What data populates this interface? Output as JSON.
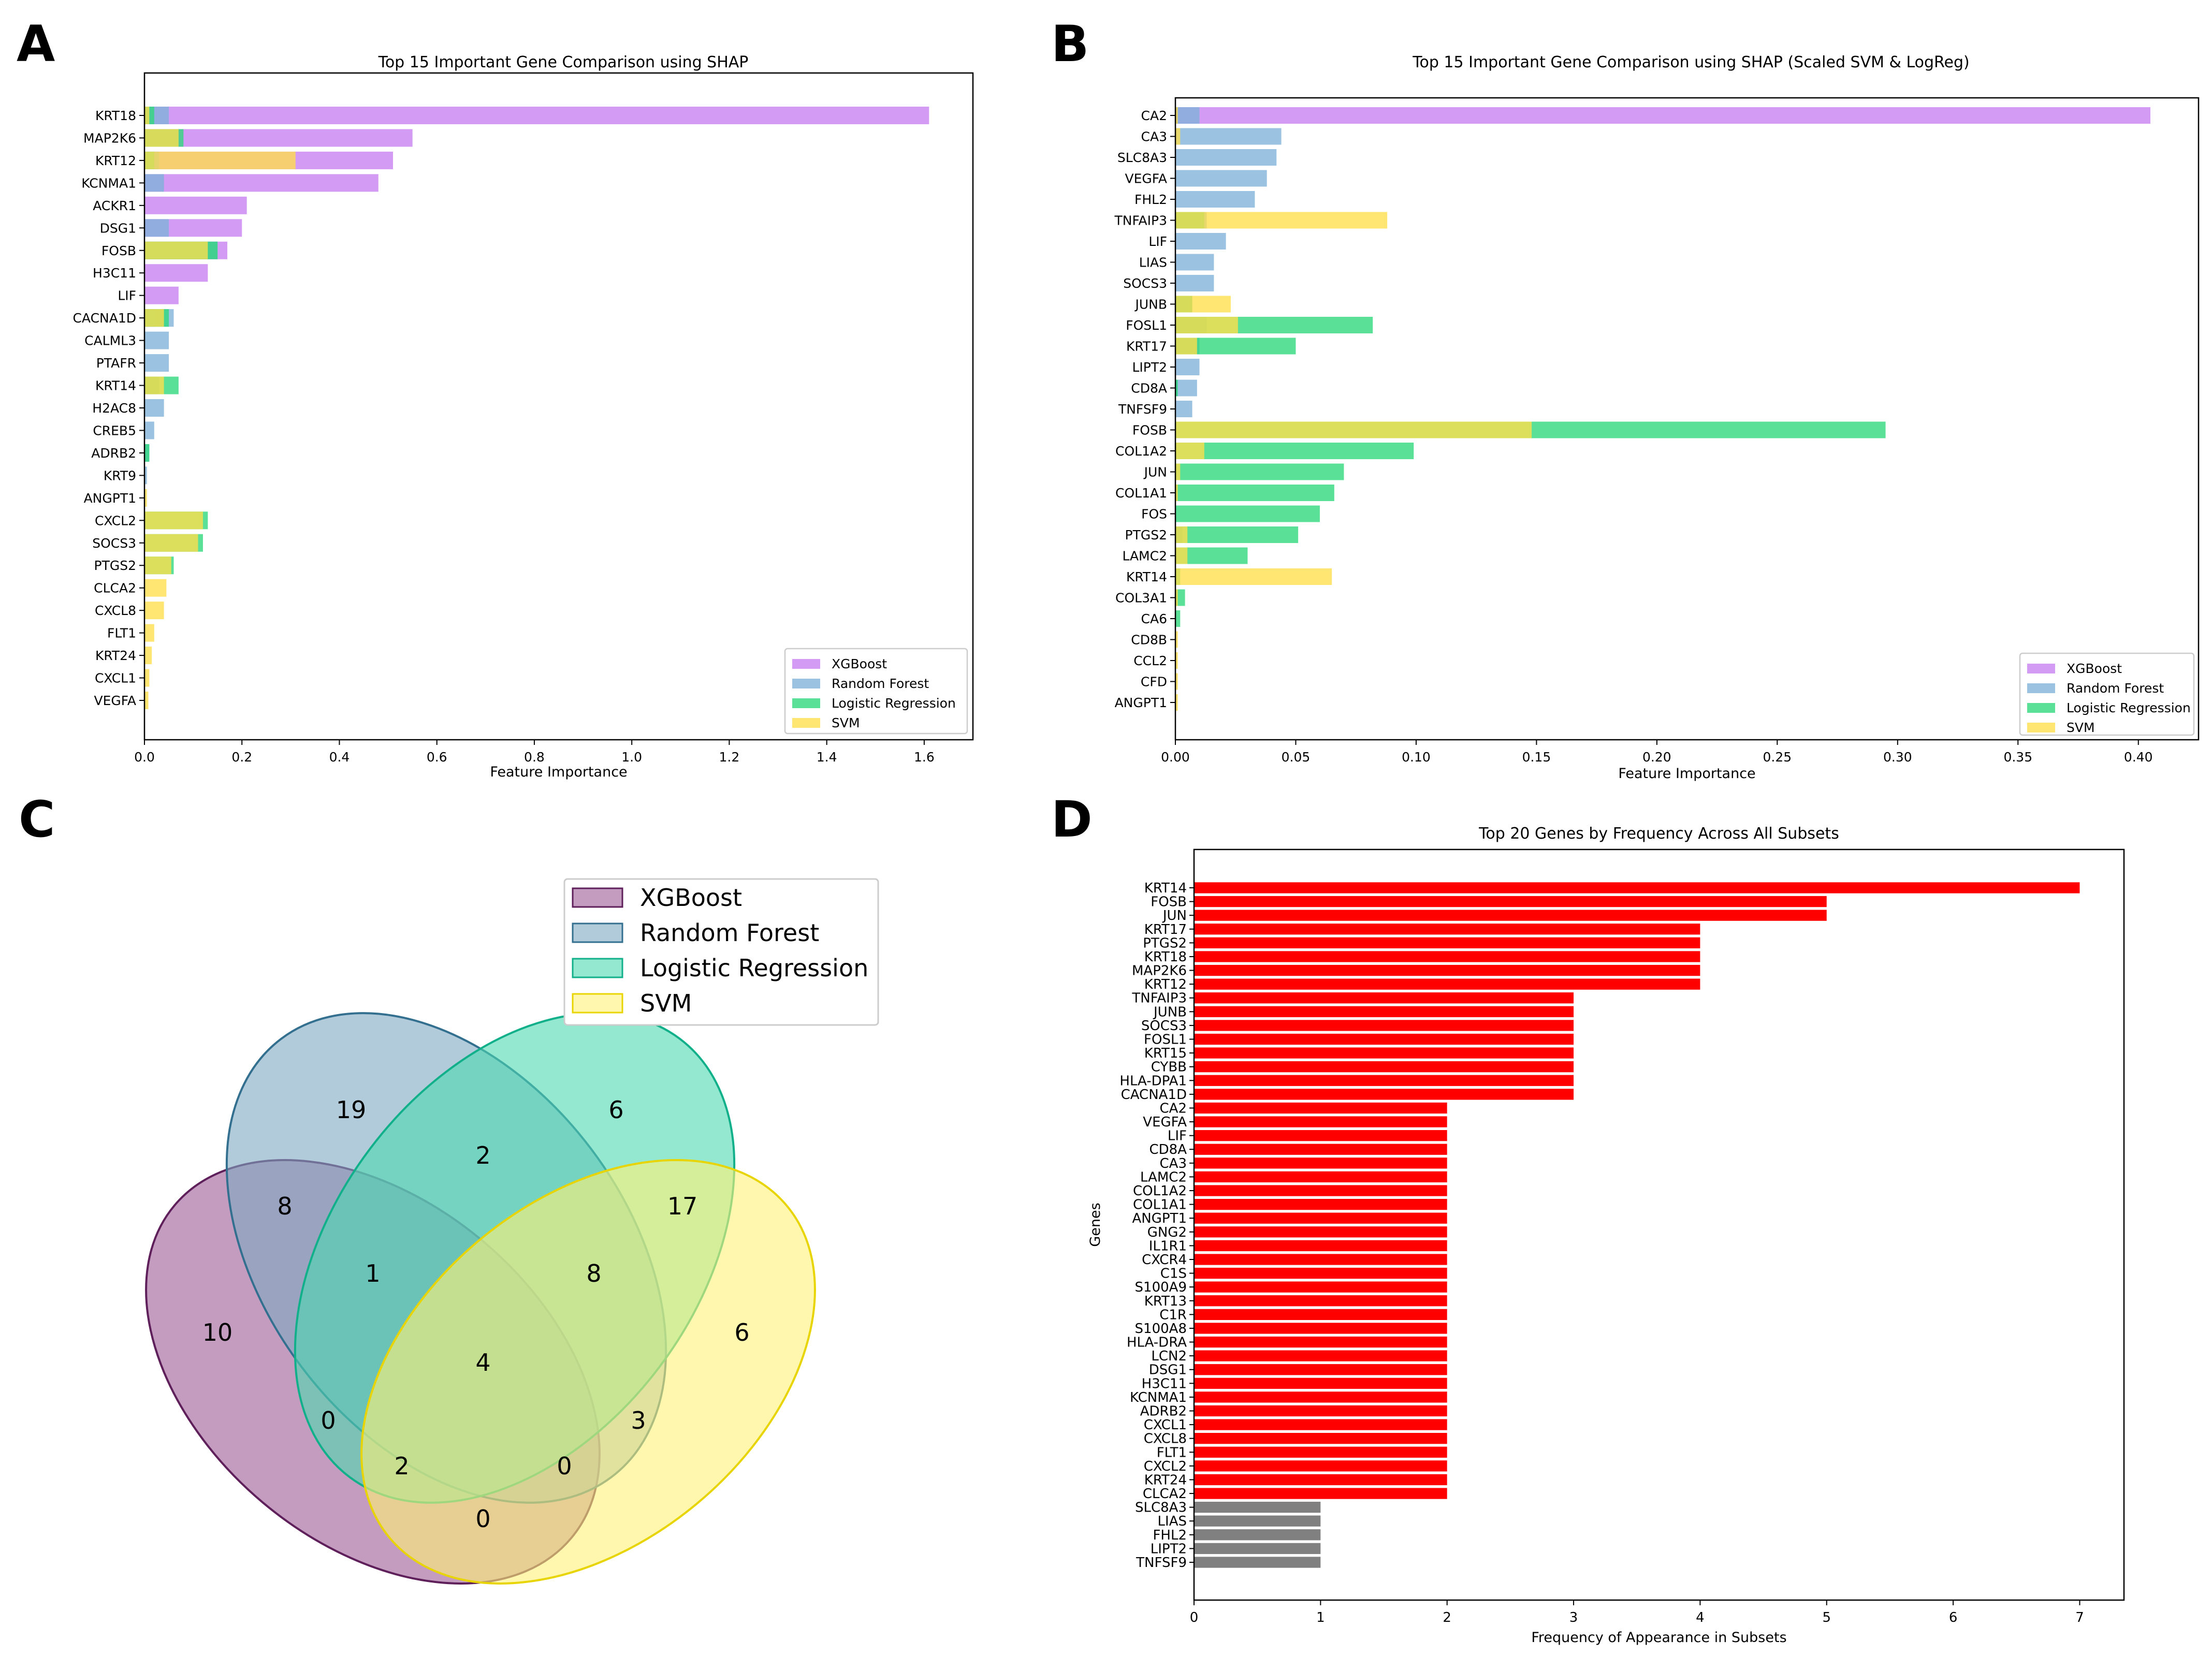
{
  "panels": {
    "A": {
      "label": "A",
      "chart_data": {
        "type": "bar",
        "orientation": "horizontal",
        "stacking": "overlay",
        "title": "Top 15 Important Gene Comparison using SHAP",
        "xlabel": "Feature Importance",
        "xlim": [
          0,
          1.7
        ],
        "xticks": [
          0.0,
          0.2,
          0.4,
          0.6,
          0.8,
          1.0,
          1.2,
          1.4,
          1.6
        ],
        "xtick_labels": [
          "0.0",
          "0.2",
          "0.4",
          "0.6",
          "0.8",
          "1.0",
          "1.2",
          "1.4",
          "1.6"
        ],
        "categories": [
          "KRT18",
          "MAP2K6",
          "KRT12",
          "KCNMA1",
          "ACKR1",
          "DSG1",
          "FOSB",
          "H3C11",
          "LIF",
          "CACNA1D",
          "CALML3",
          "PTAFR",
          "KRT14",
          "H2AC8",
          "CREB5",
          "ADRB2",
          "KRT9",
          "ANGPT1",
          "CXCL2",
          "SOCS3",
          "PTGS2",
          "CLCA2",
          "CXCL8",
          "FLT1",
          "KRT24",
          "CXCL1",
          "VEGFA"
        ],
        "series": [
          {
            "name": "XGBoost",
            "color": "#c77ff0",
            "values": [
              1.61,
              0.55,
              0.51,
              0.48,
              0.21,
              0.2,
              0.17,
              0.13,
              0.07,
              0.02,
              0,
              0,
              0,
              0,
              0,
              0,
              0,
              0,
              0,
              0,
              0,
              0,
              0,
              0,
              0,
              0,
              0
            ]
          },
          {
            "name": "Random Forest",
            "color": "#7fb2d8",
            "values": [
              0.05,
              0.01,
              0.03,
              0.04,
              0,
              0.05,
              0.15,
              0,
              0,
              0.06,
              0.05,
              0.05,
              0.03,
              0.04,
              0.02,
              0.01,
              0.005,
              0,
              0,
              0,
              0,
              0,
              0,
              0,
              0,
              0,
              0
            ]
          },
          {
            "name": "Logistic Regression",
            "color": "#2bd97a",
            "values": [
              0.02,
              0.08,
              0.02,
              0,
              0,
              0,
              0.15,
              0,
              0,
              0.05,
              0,
              0,
              0.07,
              0,
              0,
              0.01,
              0,
              0,
              0.13,
              0.12,
              0.06,
              0,
              0,
              0,
              0,
              0,
              0
            ]
          },
          {
            "name": "SVM",
            "color": "#ffde4a",
            "values": [
              0.01,
              0.07,
              0.31,
              0,
              0,
              0,
              0.13,
              0,
              0,
              0.04,
              0,
              0,
              0.04,
              0,
              0,
              0,
              0,
              0.005,
              0.12,
              0.11,
              0.055,
              0.045,
              0.04,
              0.02,
              0.015,
              0.01,
              0.008
            ]
          }
        ],
        "legend": {
          "position": "lower right",
          "entries": [
            "XGBoost",
            "Random Forest",
            "Logistic Regression",
            "SVM"
          ]
        }
      }
    },
    "B": {
      "label": "B",
      "chart_data": {
        "type": "bar",
        "orientation": "horizontal",
        "stacking": "overlay",
        "title": "Top 15 Important Gene Comparison using SHAP (Scaled SVM & LogReg)",
        "xlabel": "Feature Importance",
        "xlim": [
          0,
          0.425
        ],
        "xticks": [
          0.0,
          0.05,
          0.1,
          0.15,
          0.2,
          0.25,
          0.3,
          0.35,
          0.4
        ],
        "xtick_labels": [
          "0.00",
          "0.05",
          "0.10",
          "0.15",
          "0.20",
          "0.25",
          "0.30",
          "0.35",
          "0.40"
        ],
        "categories": [
          "CA2",
          "CA3",
          "SLC8A3",
          "VEGFA",
          "FHL2",
          "TNFAIP3",
          "LIF",
          "LIAS",
          "SOCS3",
          "JUNB",
          "FOSL1",
          "KRT17",
          "LIPT2",
          "CD8A",
          "TNFSF9",
          "FOSB",
          "COL1A2",
          "JUN",
          "COL1A1",
          "FOS",
          "PTGS2",
          "LAMC2",
          "KRT14",
          "COL3A1",
          "CA6",
          "CD8B",
          "CCL2",
          "CFD",
          "ANGPT1"
        ],
        "series": [
          {
            "name": "XGBoost",
            "color": "#c77ff0",
            "values": [
              0.405,
              0,
              0,
              0,
              0,
              0,
              0,
              0,
              0,
              0,
              0,
              0,
              0,
              0,
              0,
              0,
              0,
              0,
              0,
              0,
              0,
              0,
              0,
              0,
              0,
              0,
              0,
              0,
              0
            ]
          },
          {
            "name": "Random Forest",
            "color": "#7fb2d8",
            "values": [
              0.01,
              0.044,
              0.042,
              0.038,
              0.033,
              0.013,
              0.021,
              0.016,
              0.016,
              0.007,
              0.013,
              0.01,
              0.01,
              0.009,
              0.007,
              0,
              0,
              0,
              0,
              0,
              0.003,
              0,
              0,
              0,
              0,
              0,
              0,
              0,
              0
            ]
          },
          {
            "name": "Logistic Regression",
            "color": "#2bd97a",
            "values": [
              0,
              0,
              0,
              0,
              0,
              0.012,
              0,
              0,
              0,
              0.007,
              0.082,
              0.05,
              0,
              0.001,
              0,
              0.295,
              0.099,
              0.07,
              0.066,
              0.06,
              0.051,
              0.03,
              0.002,
              0.004,
              0.002,
              0,
              0,
              0,
              0
            ]
          },
          {
            "name": "SVM",
            "color": "#ffde4a",
            "values": [
              0.001,
              0.002,
              0,
              0,
              0,
              0.088,
              0,
              0,
              0,
              0.023,
              0.026,
              0.009,
              0,
              0,
              0,
              0.148,
              0.012,
              0.002,
              0.001,
              0,
              0.005,
              0.005,
              0.065,
              0.001,
              0,
              0.001,
              0.001,
              0.001,
              0.001
            ]
          }
        ],
        "legend": {
          "position": "lower right",
          "entries": [
            "XGBoost",
            "Random Forest",
            "Logistic Regression",
            "SVM"
          ]
        }
      }
    },
    "C": {
      "label": "C",
      "venn": {
        "sets": [
          {
            "name": "XGBoost",
            "color": "#9b5a94",
            "edge": "#5e1f5a"
          },
          {
            "name": "Random Forest",
            "color": "#7ea8c2",
            "edge": "#336f8f"
          },
          {
            "name": "Logistic Regression",
            "color": "#4dd8b0",
            "edge": "#11b08a"
          },
          {
            "name": "SVM",
            "color": "#fff176",
            "edge": "#e8d400"
          }
        ],
        "regions": {
          "XGB_only": "10",
          "RF_only": "19",
          "LR_only": "6",
          "SVM_only": "6",
          "XGB_RF": "8",
          "RF_LR": "2",
          "LR_SVM": "17",
          "XGB_RF_LR": "1",
          "RF_LR_SVM": "8",
          "ALL": "4",
          "XGB_LR": "0",
          "RF_SVM": "3",
          "XGB_LR_SVM": "2",
          "XGB_RF_SVM": "0",
          "XGB_SVM": "0"
        }
      }
    },
    "D": {
      "label": "D",
      "chart_data": {
        "type": "bar",
        "orientation": "horizontal",
        "title": "Top 20 Genes by Frequency Across All Subsets",
        "xlabel": "Frequency of Appearance in Subsets",
        "ylabel": "Genes",
        "xlim": [
          0,
          7.35
        ],
        "xticks": [
          0,
          1,
          2,
          3,
          4,
          5,
          6,
          7
        ],
        "xtick_labels": [
          "0",
          "1",
          "2",
          "3",
          "4",
          "5",
          "6",
          "7"
        ],
        "categories": [
          "KRT14",
          "FOSB",
          "JUN",
          "KRT17",
          "PTGS2",
          "KRT18",
          "MAP2K6",
          "KRT12",
          "TNFAIP3",
          "JUNB",
          "SOCS3",
          "FOSL1",
          "KRT15",
          "CYBB",
          "HLA-DPA1",
          "CACNA1D",
          "CA2",
          "VEGFA",
          "LIF",
          "CD8A",
          "CA3",
          "LAMC2",
          "COL1A2",
          "COL1A1",
          "ANGPT1",
          "GNG2",
          "IL1R1",
          "CXCR4",
          "C1S",
          "S100A9",
          "KRT13",
          "C1R",
          "S100A8",
          "HLA-DRA",
          "LCN2",
          "DSG1",
          "H3C11",
          "KCNMA1",
          "ADRB2",
          "CXCL1",
          "CXCL8",
          "FLT1",
          "CXCL2",
          "KRT24",
          "CLCA2",
          "SLC8A3",
          "LIAS",
          "FHL2",
          "LIPT2",
          "TNFSF9"
        ],
        "values": [
          7,
          5,
          5,
          4,
          4,
          4,
          4,
          4,
          3,
          3,
          3,
          3,
          3,
          3,
          3,
          3,
          2,
          2,
          2,
          2,
          2,
          2,
          2,
          2,
          2,
          2,
          2,
          2,
          2,
          2,
          2,
          2,
          2,
          2,
          2,
          2,
          2,
          2,
          2,
          2,
          2,
          2,
          2,
          2,
          2,
          1,
          1,
          1,
          1,
          1
        ],
        "colors": {
          "top20": "#ff0000",
          "other": "#808080"
        },
        "top_count": 45
      }
    }
  }
}
